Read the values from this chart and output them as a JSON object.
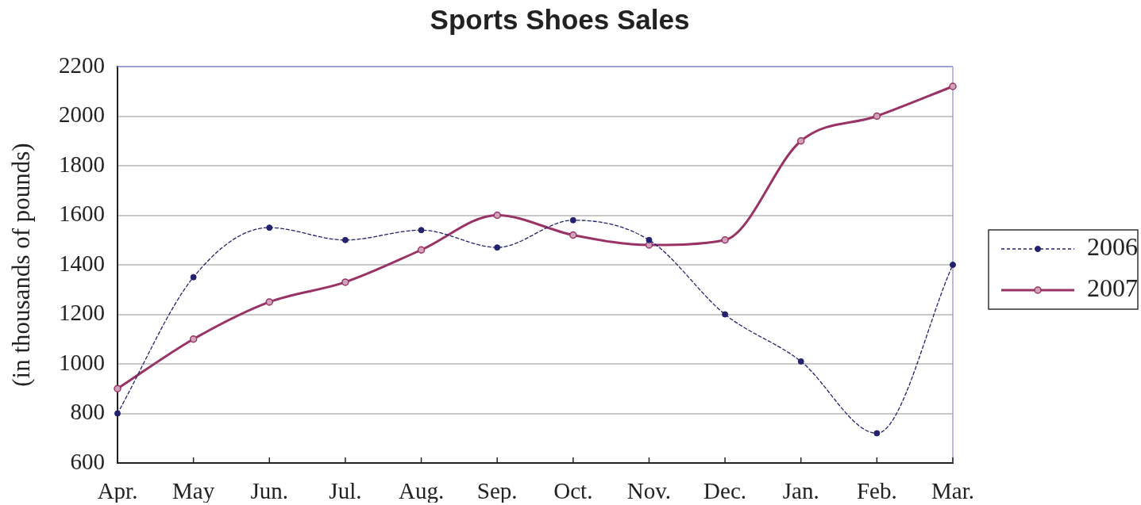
{
  "chart_data": {
    "type": "line",
    "title": "Sports Shoes Sales",
    "ylabel": "(in thousands of pounds)",
    "categories": [
      "Apr.",
      "May",
      "Jun.",
      "Jul.",
      "Aug.",
      "Sep.",
      "Oct.",
      "Nov.",
      "Dec.",
      "Jan.",
      "Feb.",
      "Mar."
    ],
    "series": [
      {
        "name": "2006",
        "color": "#22226e",
        "line_style": "dashed",
        "values": [
          800,
          1350,
          1550,
          1500,
          1540,
          1470,
          1580,
          1500,
          1200,
          1010,
          720,
          1400
        ]
      },
      {
        "name": "2007",
        "color": "#993366",
        "line_style": "solid",
        "values": [
          900,
          1100,
          1250,
          1330,
          1460,
          1600,
          1520,
          1480,
          1500,
          1900,
          2000,
          2120
        ]
      }
    ],
    "ylim": [
      600,
      2200
    ],
    "yticks": [
      600,
      800,
      1000,
      1200,
      1400,
      1600,
      1800,
      2000,
      2200
    ],
    "grid": "y",
    "legend": "right",
    "marker": "circle"
  }
}
